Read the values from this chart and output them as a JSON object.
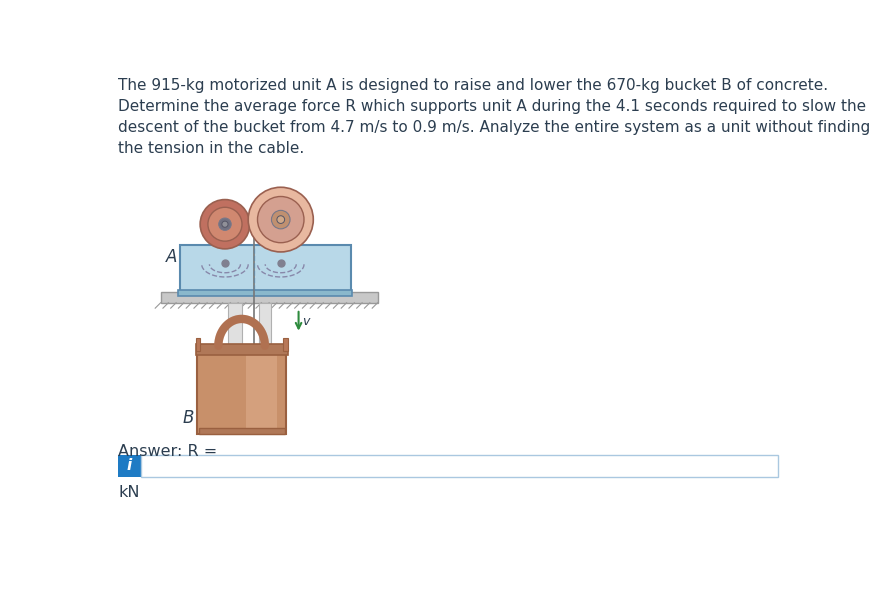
{
  "title_text": "The 915-kg motorized unit A is designed to raise and lower the 670-kg bucket B of concrete.\nDetermine the average force R which supports unit A during the 4.1 seconds required to slow the\ndescent of the bucket from 4.7 m/s to 0.9 m/s. Analyze the entire system as a unit without finding\nthe tension in the cable.",
  "answer_label": "Answer: R =",
  "unit_label": "kN",
  "info_icon": "i",
  "label_A": "A",
  "label_B": "B",
  "label_v": "v",
  "bg_color": "#ffffff",
  "text_color": "#2c3e50",
  "title_fontsize": 11.0,
  "answer_fontsize": 11.5,
  "unit_fontsize": 11.5,
  "blue_box_color": "#1e7bc4",
  "input_box_color": "#ffffff",
  "input_box_border": "#aac8e0",
  "pulley_left_outer": "#c07060",
  "pulley_left_mid": "#d08870",
  "pulley_right_outer": "#e8b8a0",
  "pulley_right_mid": "#d4a090",
  "pulley_right_center": "#c09070",
  "pulley_hub_color": "#808090",
  "pulley_hub_inner": "#b0b0c0",
  "housing_color": "#b8d8e8",
  "housing_border": "#7aaabe",
  "housing_dark_border": "#5a8aae",
  "bucket_body_color": "#c8906a",
  "bucket_body_light": "#e0b090",
  "bucket_rim_color": "#b07858",
  "bucket_border_color": "#9a6040",
  "bucket_handle_color": "#b87858",
  "platform_color": "#c8c8c8",
  "platform_border": "#999999",
  "ground_color": "#d8d8d8",
  "pole_color": "#e0e0e0",
  "pole_border": "#b0b0b0",
  "arrow_color": "#2e8b3e",
  "cable_color": "#777777",
  "dashed_color": "#8888aa"
}
